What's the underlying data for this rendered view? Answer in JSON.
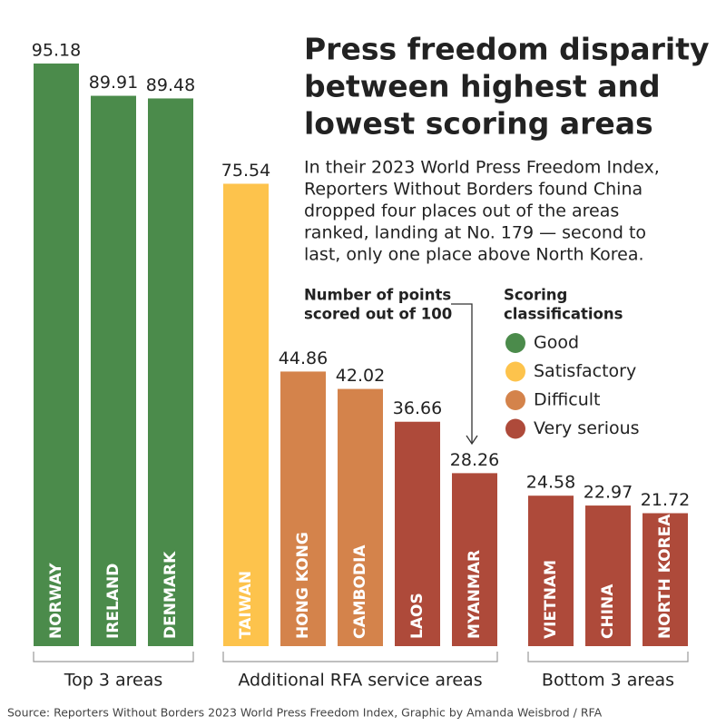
{
  "chart_data": {
    "type": "bar",
    "title": [
      "Press freedom disparity",
      "between highest and",
      "lowest scoring areas"
    ],
    "subtitle": [
      "In their 2023 World Press Freedom Index,",
      "Reporters Without Borders found China",
      "dropped four places out of the areas",
      "ranked, landing at No. 179 — second to",
      "last, only one place above North Korea."
    ],
    "annotation": [
      "Number of points",
      "scored out of 100"
    ],
    "legend_title": [
      "Scoring",
      "classifications"
    ],
    "classifications": [
      {
        "name": "Good",
        "color": "#4b8b4b"
      },
      {
        "name": "Satisfactory",
        "color": "#fdc34c"
      },
      {
        "name": "Difficult",
        "color": "#d4834b"
      },
      {
        "name": "Very serious",
        "color": "#ae4a3a"
      }
    ],
    "groups": [
      {
        "name": "Top 3 areas",
        "bars": [
          {
            "category": "NORWAY",
            "value": 95.18,
            "classification": "Good"
          },
          {
            "category": "IRELAND",
            "value": 89.91,
            "classification": "Good"
          },
          {
            "category": "DENMARK",
            "value": 89.48,
            "classification": "Good"
          }
        ]
      },
      {
        "name": "Additional RFA service areas",
        "bars": [
          {
            "category": "TAIWAN",
            "value": 75.54,
            "classification": "Satisfactory"
          },
          {
            "category": "HONG KONG",
            "value": 44.86,
            "classification": "Difficult"
          },
          {
            "category": "CAMBODIA",
            "value": 42.02,
            "classification": "Difficult"
          },
          {
            "category": "LAOS",
            "value": 36.66,
            "classification": "Very serious"
          },
          {
            "category": "MYANMAR",
            "value": 28.26,
            "classification": "Very serious"
          }
        ]
      },
      {
        "name": "Bottom 3 areas",
        "bars": [
          {
            "category": "VIETNAM",
            "value": 24.58,
            "classification": "Very serious"
          },
          {
            "category": "CHINA",
            "value": 22.97,
            "classification": "Very serious"
          },
          {
            "category": "NORTH KOREA",
            "value": 21.72,
            "classification": "Very serious"
          }
        ]
      }
    ],
    "source": "Source: Reporters Without Borders 2023 World Press Freedom Index, Graphic by Amanda Weisbrod / RFA"
  }
}
